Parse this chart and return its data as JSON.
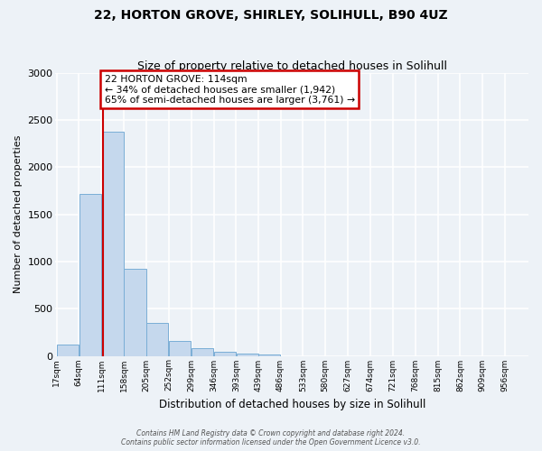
{
  "title": "22, HORTON GROVE, SHIRLEY, SOLIHULL, B90 4UZ",
  "subtitle": "Size of property relative to detached houses in Solihull",
  "xlabel": "Distribution of detached houses by size in Solihull",
  "ylabel": "Number of detached properties",
  "bin_labels": [
    "17sqm",
    "64sqm",
    "111sqm",
    "158sqm",
    "205sqm",
    "252sqm",
    "299sqm",
    "346sqm",
    "393sqm",
    "439sqm",
    "486sqm",
    "533sqm",
    "580sqm",
    "627sqm",
    "674sqm",
    "721sqm",
    "768sqm",
    "815sqm",
    "862sqm",
    "909sqm",
    "956sqm"
  ],
  "bin_starts": [
    17,
    64,
    111,
    158,
    205,
    252,
    299,
    346,
    393,
    439,
    486,
    533,
    580,
    627,
    674,
    721,
    768,
    815,
    862,
    909,
    956
  ],
  "bar_values": [
    120,
    1720,
    2380,
    920,
    345,
    155,
    80,
    45,
    25,
    10,
    0,
    0,
    0,
    0,
    0,
    0,
    0,
    0,
    0,
    0,
    0
  ],
  "bar_color": "#c5d8ed",
  "bar_edge_color": "#7aaed6",
  "property_line_x": 111,
  "property_line_color": "#cc0000",
  "annotation_title": "22 HORTON GROVE: 114sqm",
  "annotation_line1": "← 34% of detached houses are smaller (1,942)",
  "annotation_line2": "65% of semi-detached houses are larger (3,761) →",
  "annotation_box_color": "#cc0000",
  "ylim": [
    0,
    3000
  ],
  "yticks": [
    0,
    500,
    1000,
    1500,
    2000,
    2500,
    3000
  ],
  "footer_line1": "Contains HM Land Registry data © Crown copyright and database right 2024.",
  "footer_line2": "Contains public sector information licensed under the Open Government Licence v3.0.",
  "bg_color": "#edf2f7",
  "grid_color": "#ffffff",
  "bin_width": 47
}
